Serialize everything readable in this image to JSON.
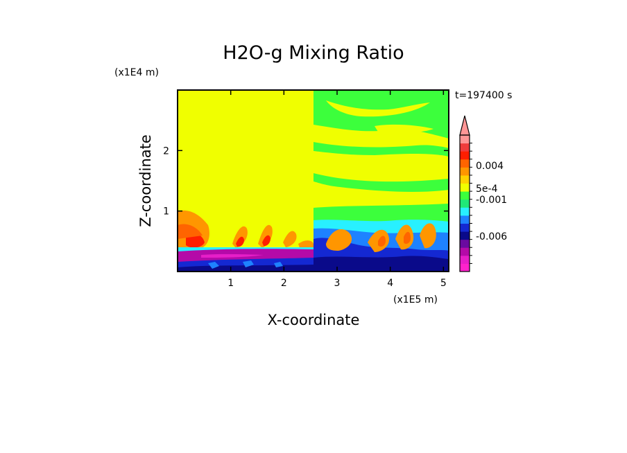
{
  "chart_data": {
    "type": "heatmap",
    "title": "H2O-g Mixing Ratio",
    "xlabel": "X-coordinate",
    "ylabel": "Z-coordinate",
    "x_unit": "(x1E5 m)",
    "y_unit": "(x1E4 m)",
    "time_label": "t=197400 s",
    "xlim": [
      0,
      5.1
    ],
    "ylim": [
      0,
      3.0
    ],
    "x_ticks": [
      1,
      2,
      3,
      4,
      5
    ],
    "y_ticks": [
      1,
      2
    ],
    "colorbar": {
      "extend": "max",
      "colors": [
        "#ff22cc",
        "#e61ec8",
        "#b40aa8",
        "#6a0aa0",
        "#0a0a8a",
        "#1428d2",
        "#1e82ff",
        "#28f0ff",
        "#20e878",
        "#3cff3c",
        "#f0ff00",
        "#ffd200",
        "#ff9600",
        "#ff6400",
        "#ff1e00",
        "#f03c3c",
        "#ff9696"
      ],
      "tick_labels": [
        "0.004",
        "5e-4",
        "-0.001",
        "-0.006"
      ]
    },
    "field_colors": {
      "background_left": "#f0ff00",
      "upper_right": "#3cff3c",
      "boundary_layer": "#1428d2",
      "surface_band": "#b40aa8",
      "warm_plumes": "#ff9600"
    }
  }
}
